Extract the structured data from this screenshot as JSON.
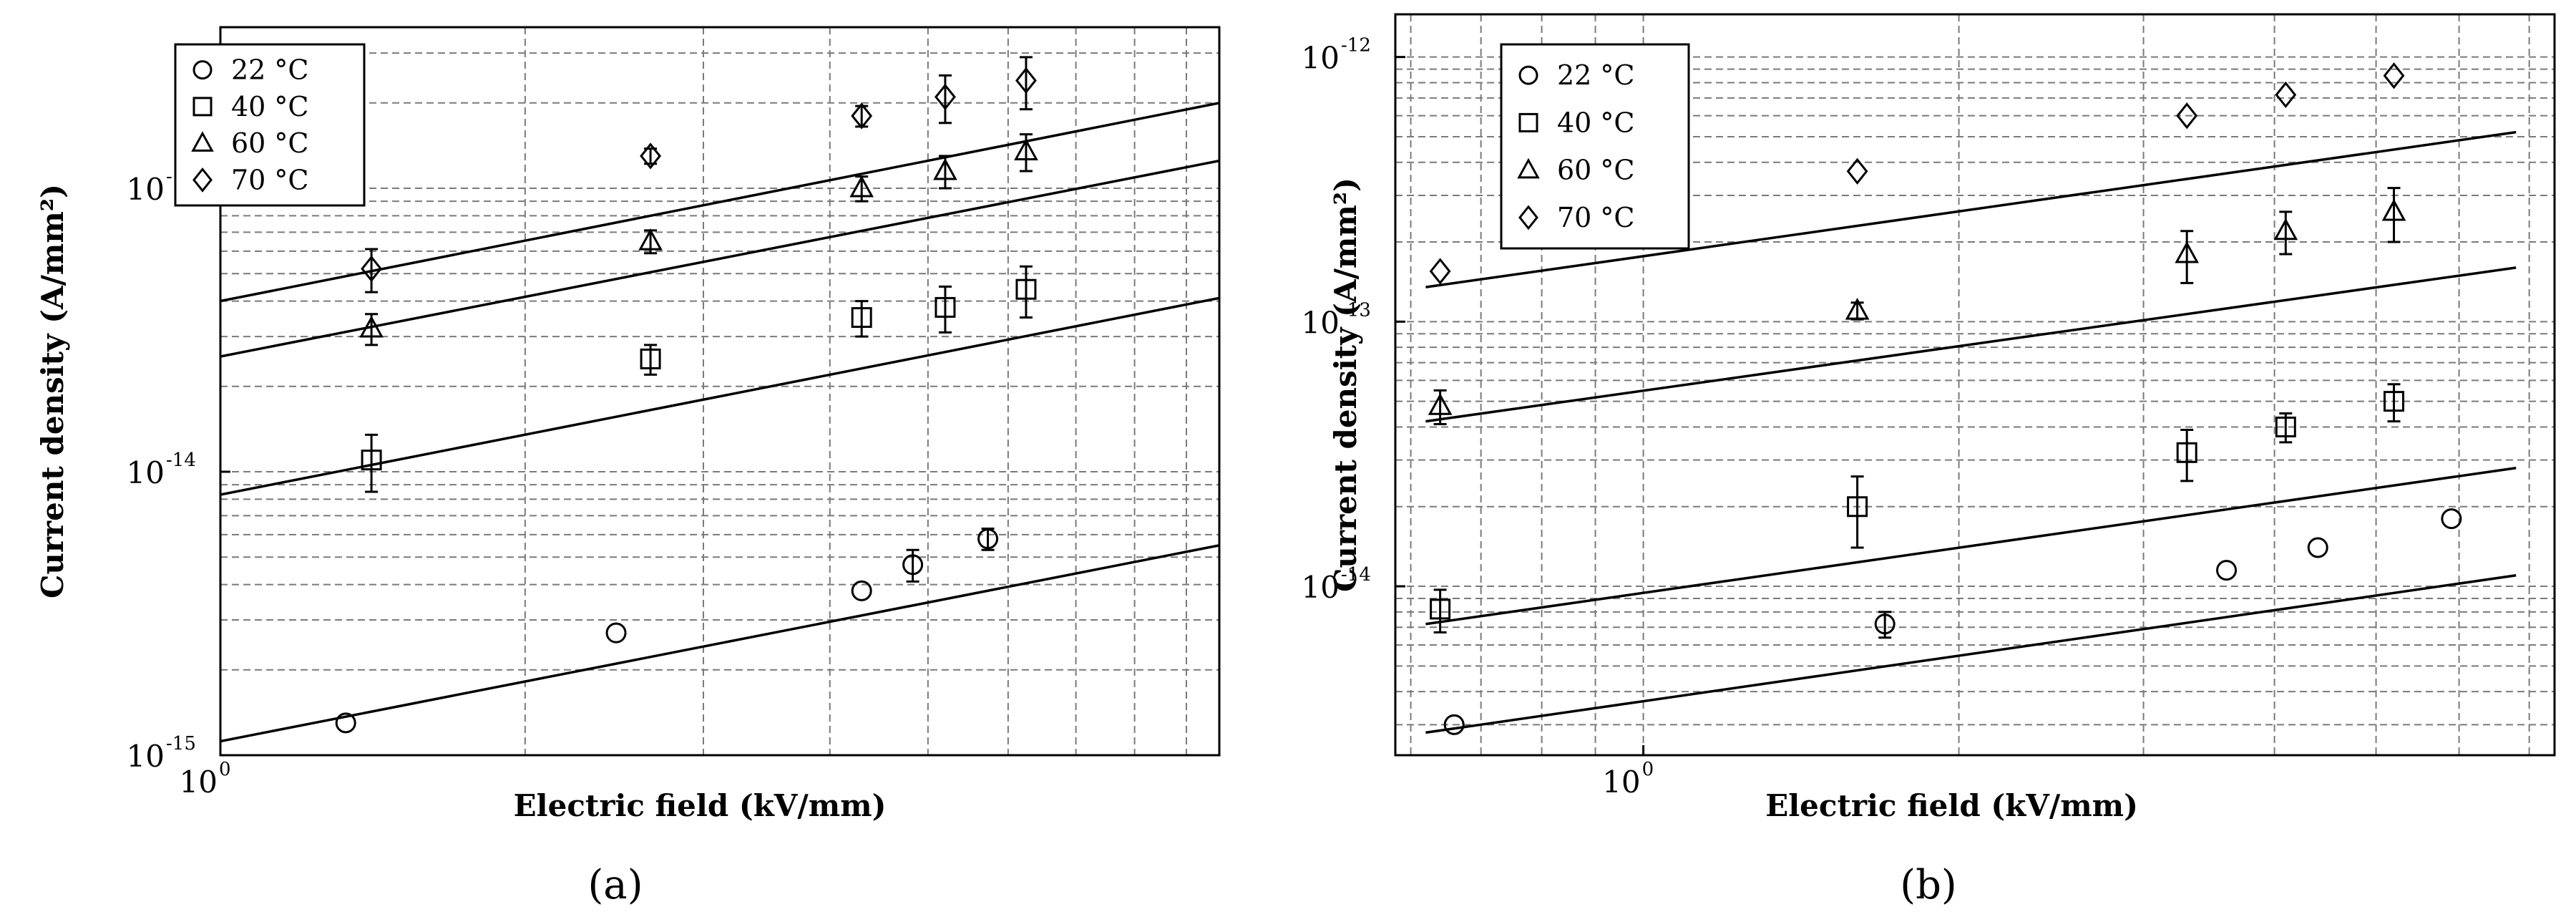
{
  "chart_data": [
    {
      "type": "scatter",
      "panel": "(a)",
      "xlabel": "Electric field (kV/mm)",
      "ylabel": "Current density (A/mm²)",
      "xscale": "log",
      "yscale": "log",
      "xlim": [
        1.0,
        9.7
      ],
      "ylim": [
        1e-15,
        3.7e-13
      ],
      "grid": true,
      "legend_position": "top-left",
      "xticks": [
        {
          "value": 1,
          "label": "10",
          "exp": "0"
        }
      ],
      "yticks": [
        {
          "value": 1e-15,
          "label": "10",
          "exp": "-15"
        },
        {
          "value": 1e-14,
          "label": "10",
          "exp": "-14"
        },
        {
          "value": 1e-13,
          "label": "10",
          "exp": "-13"
        }
      ],
      "series": [
        {
          "name": "22 °C",
          "marker": "circle",
          "points": [
            {
              "x": 1.33,
              "y": 1.3e-15,
              "err": 0
            },
            {
              "x": 2.46,
              "y": 2.7e-15,
              "err": 0
            },
            {
              "x": 4.3,
              "y": 3.8e-15,
              "err": 0
            },
            {
              "x": 4.83,
              "y": 4.7e-15,
              "err": 6e-16
            },
            {
              "x": 5.73,
              "y": 5.8e-15,
              "err": 5e-16
            }
          ],
          "fit": [
            [
              1.0,
              1.12e-15
            ],
            [
              9.7,
              5.5e-15
            ]
          ]
        },
        {
          "name": "40 °C",
          "marker": "square",
          "points": [
            {
              "x": 1.41,
              "y": 1.1e-14,
              "err": 2.5e-15
            },
            {
              "x": 2.66,
              "y": 2.5e-14,
              "err": 3e-15
            },
            {
              "x": 4.3,
              "y": 3.5e-14,
              "err": 5e-15
            },
            {
              "x": 5.2,
              "y": 3.8e-14,
              "err": 7e-15
            },
            {
              "x": 6.25,
              "y": 4.4e-14,
              "err": 9e-15
            }
          ],
          "fit": [
            [
              1.0,
              8.3e-15
            ],
            [
              9.7,
              4.1e-14
            ]
          ]
        },
        {
          "name": "60 °C",
          "marker": "triangle",
          "points": [
            {
              "x": 1.41,
              "y": 3.2e-14,
              "err": 4e-15
            },
            {
              "x": 2.66,
              "y": 6.5e-14,
              "err": 6e-15
            },
            {
              "x": 4.3,
              "y": 1e-13,
              "err": 1e-14
            },
            {
              "x": 5.2,
              "y": 1.15e-13,
              "err": 1.5e-14
            },
            {
              "x": 6.25,
              "y": 1.35e-13,
              "err": 2e-14
            }
          ],
          "fit": [
            [
              1.0,
              2.55e-14
            ],
            [
              9.7,
              1.25e-13
            ]
          ]
        },
        {
          "name": "70 °C",
          "marker": "diamond",
          "points": [
            {
              "x": 1.41,
              "y": 5.2e-14,
              "err": 9e-15
            },
            {
              "x": 2.66,
              "y": 1.3e-13,
              "err": 8e-15
            },
            {
              "x": 4.3,
              "y": 1.8e-13,
              "err": 1.5e-14
            },
            {
              "x": 5.2,
              "y": 2.1e-13,
              "err": 4e-14
            },
            {
              "x": 6.25,
              "y": 2.4e-13,
              "err": 5e-14
            }
          ],
          "fit": [
            [
              1.0,
              4e-14
            ],
            [
              9.7,
              2e-13
            ]
          ]
        }
      ]
    },
    {
      "type": "scatter",
      "panel": "(b)",
      "xlabel": "Electric field (kV/mm)",
      "ylabel": "Current density (A/mm²)",
      "xscale": "log",
      "yscale": "log",
      "xlim": [
        0.58,
        7.4
      ],
      "ylim": [
        2.3e-15,
        1.45e-12
      ],
      "grid": true,
      "legend_position": "top-left",
      "xticks": [
        {
          "value": 1,
          "label": "10",
          "exp": "0"
        }
      ],
      "yticks": [
        {
          "value": 1e-14,
          "label": "10",
          "exp": "-14"
        },
        {
          "value": 1e-13,
          "label": "10",
          "exp": "-13"
        },
        {
          "value": 1e-12,
          "label": "10",
          "exp": "-12"
        }
      ],
      "series": [
        {
          "name": "22 °C",
          "marker": "circle",
          "points": [
            {
              "x": 0.66,
              "y": 3e-15,
              "err": 0
            },
            {
              "x": 1.7,
              "y": 7.2e-15,
              "err": 8e-16
            },
            {
              "x": 3.6,
              "y": 1.15e-14,
              "err": 0
            },
            {
              "x": 4.4,
              "y": 1.4e-14,
              "err": 0
            },
            {
              "x": 5.9,
              "y": 1.8e-14,
              "err": 0
            }
          ],
          "fit": [
            [
              0.62,
              2.8e-15
            ],
            [
              6.8,
              1.1e-14
            ]
          ]
        },
        {
          "name": "40 °C",
          "marker": "square",
          "points": [
            {
              "x": 0.64,
              "y": 8.2e-15,
              "err": 1.5e-15
            },
            {
              "x": 1.6,
              "y": 2e-14,
              "err": 6e-15
            },
            {
              "x": 3.3,
              "y": 3.2e-14,
              "err": 7e-15
            },
            {
              "x": 4.1,
              "y": 4e-14,
              "err": 5e-15
            },
            {
              "x": 5.2,
              "y": 5e-14,
              "err": 8e-15
            }
          ],
          "fit": [
            [
              0.62,
              7.2e-15
            ],
            [
              6.8,
              2.8e-14
            ]
          ]
        },
        {
          "name": "60 °C",
          "marker": "triangle",
          "points": [
            {
              "x": 0.64,
              "y": 4.8e-14,
              "err": 7e-15
            },
            {
              "x": 1.6,
              "y": 1.1e-13,
              "err": 8e-15
            },
            {
              "x": 3.3,
              "y": 1.8e-13,
              "err": 4e-14
            },
            {
              "x": 4.1,
              "y": 2.2e-13,
              "err": 4e-14
            },
            {
              "x": 5.2,
              "y": 2.6e-13,
              "err": 6e-14
            }
          ],
          "fit": [
            [
              0.62,
              4.2e-14
            ],
            [
              6.8,
              1.6e-13
            ]
          ]
        },
        {
          "name": "70 °C",
          "marker": "diamond",
          "points": [
            {
              "x": 0.64,
              "y": 1.55e-13,
              "err": 0
            },
            {
              "x": 1.6,
              "y": 3.7e-13,
              "err": 0
            },
            {
              "x": 3.3,
              "y": 6e-13,
              "err": 0
            },
            {
              "x": 4.1,
              "y": 7.2e-13,
              "err": 0
            },
            {
              "x": 5.2,
              "y": 8.5e-13,
              "err": 0
            }
          ],
          "fit": [
            [
              0.62,
              1.35e-13
            ],
            [
              6.8,
              5.2e-13
            ]
          ]
        }
      ]
    }
  ]
}
